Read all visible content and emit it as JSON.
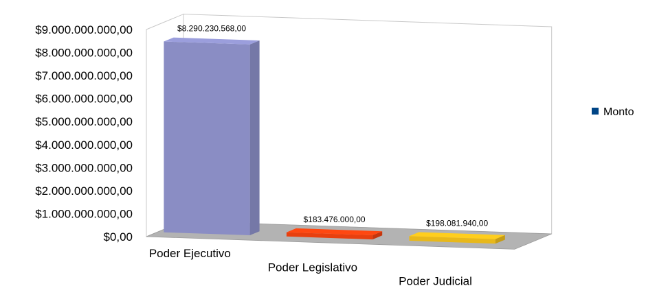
{
  "chart_data": {
    "type": "bar",
    "three_d": true,
    "categories": [
      "Poder Ejecutivo",
      "Poder Legislativo",
      "Poder Judicial"
    ],
    "series": [
      {
        "name": "Monto",
        "values": [
          8290230568,
          183476000,
          198081940
        ],
        "data_labels": [
          "$8.290.230.568,00",
          "$183.476.000,00",
          "$198.081.940,00"
        ]
      }
    ],
    "ylim": [
      0,
      9000000000
    ],
    "y_ticks": [
      "$0,00",
      "$1.000.000.000,00",
      "$2.000.000.000,00",
      "$3.000.000.000,00",
      "$4.000.000.000,00",
      "$5.000.000.000,00",
      "$6.000.000.000,00",
      "$7.000.000.000,00",
      "$8.000.000.000,00",
      "$9.000.000.000,00"
    ],
    "bar_colors": [
      "#8a8dc4",
      "#e8400f",
      "#e8b81a"
    ],
    "legend_color": "#004586",
    "floor_color": "#b3b3b3",
    "grid": false,
    "legend_position": "right"
  }
}
